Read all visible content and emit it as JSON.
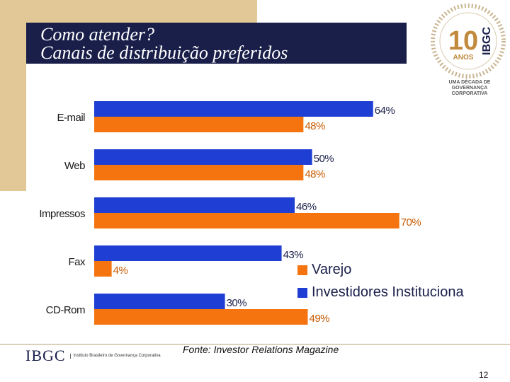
{
  "title": {
    "line1": "Como atender?",
    "line2": "Canais de distribuição preferidos"
  },
  "badge": {
    "number": "10",
    "anos": "ANOS",
    "brand": "IBGC",
    "caption": "UMA DÉCADA DE GOVERNANÇA CORPORATIVA"
  },
  "chart_data": {
    "type": "bar",
    "orientation": "horizontal",
    "categories": [
      "E-mail",
      "Web",
      "Impressos",
      "Fax",
      "CD-Rom"
    ],
    "series": [
      {
        "name": "Varejo",
        "values": [
          64,
          50,
          46,
          43,
          30
        ],
        "labels": [
          "64%",
          "50%",
          "46%",
          "43%",
          "30%"
        ],
        "color": "#1f3fd4"
      },
      {
        "name": "Investidores Institucionais",
        "values": [
          48,
          48,
          70,
          4,
          49
        ],
        "labels": [
          "48%",
          "48%",
          "70%",
          "4%",
          "49%"
        ],
        "color": "#f5740f"
      }
    ],
    "legend": [
      "Varejo",
      "Investidores Instituciona"
    ],
    "xlim": [
      0,
      72
    ]
  },
  "source": "Fonte: Investor Relations Magazine",
  "footer": {
    "logo": "IBGC",
    "logo_sub": "Instituto Brasileiro de Governança Corporativa"
  },
  "page_number": "12"
}
